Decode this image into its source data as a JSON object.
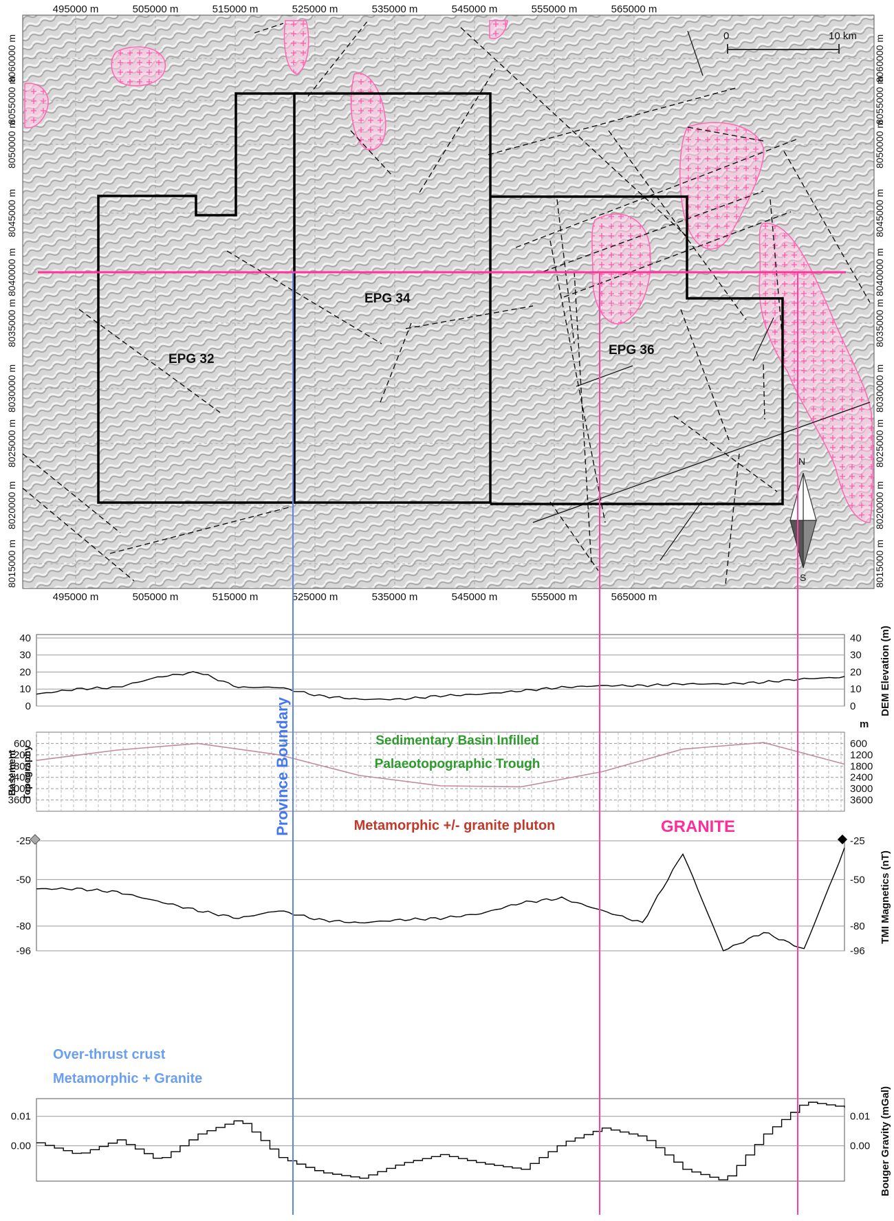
{
  "map": {
    "x_ticks": [
      "495000 m",
      "505000 m",
      "515000 m",
      "525000 m",
      "535000 m",
      "545000 m",
      "555000 m",
      "565000 m"
    ],
    "y_ticks": [
      "8060000 m",
      "8055000 m",
      "8050000 m",
      "8045000 m",
      "8040000 m",
      "8035000 m",
      "8030000 m",
      "8025000 m",
      "8020000 m",
      "8015000 m"
    ],
    "tenements": [
      "EPG 32",
      "EPG 34",
      "EPG 36"
    ],
    "scale_bar": {
      "start": "0",
      "end": "10 km"
    },
    "north_arrow": {
      "north": "N",
      "south": "S"
    },
    "colors": {
      "granite_outline": "#ff66b3",
      "granite_fill": "#ffc4e4",
      "profile_line": "#ff3399",
      "tenement": "#000000",
      "background": "#d8d8d8"
    }
  },
  "annotations": {
    "province_boundary": "Province Boundary",
    "sedimentary": [
      "Sedimentary Basin Infilled",
      "Palaeotopographic Trough"
    ],
    "metamorphic": "Metamorphic +/- granite pluton",
    "granite": "GRANITE",
    "overthrust": [
      "Over-thrust crust",
      "Metamorphic + Granite"
    ],
    "colors": {
      "province": "#4477ee",
      "sedimentary": "#2e9a2e",
      "metamorphic": "#c0392b",
      "granite": "#ff2d9b",
      "overthrust": "#6a9ef2"
    }
  },
  "chart_data": [
    {
      "type": "line",
      "ylabel": "DEM Elevation (m)",
      "yticks": [
        "0",
        "10",
        "20",
        "30",
        "40"
      ],
      "ylim": [
        0,
        42
      ],
      "x": [
        0,
        5,
        10,
        15,
        20,
        25,
        30,
        35,
        40,
        45,
        50,
        55,
        60,
        65,
        70,
        75,
        80,
        85,
        90,
        95,
        100
      ],
      "values": [
        7,
        10,
        11,
        17,
        20,
        11,
        11,
        6,
        4,
        4,
        6,
        7,
        9,
        11,
        12,
        12,
        13,
        13,
        14,
        16,
        17
      ]
    },
    {
      "type": "line",
      "title_left": [
        "Basement",
        "Topography"
      ],
      "ylabel": "m",
      "yticks": [
        "600",
        "1200",
        "1800",
        "2400",
        "3000",
        "3600"
      ],
      "ylim": [
        0,
        4200
      ],
      "x": [
        0,
        10,
        20,
        30,
        40,
        50,
        60,
        70,
        80,
        90,
        100
      ],
      "values": [
        1500,
        950,
        600,
        1200,
        2300,
        2850,
        2900,
        2100,
        900,
        550,
        1700
      ]
    },
    {
      "type": "line",
      "ylabel": "TMI Magnetics (nT)",
      "yticks": [
        "-25",
        "-50",
        "-80",
        "-96"
      ],
      "ylim": [
        -96,
        -25
      ],
      "x": [
        0,
        5,
        10,
        15,
        20,
        25,
        30,
        35,
        40,
        45,
        50,
        55,
        60,
        65,
        70,
        75,
        80,
        85,
        90,
        95,
        100
      ],
      "values": [
        -56,
        -56,
        -58,
        -64,
        -70,
        -75,
        -70,
        -76,
        -78,
        -76,
        -75,
        -72,
        -65,
        -62,
        -70,
        -78,
        -33,
        -96,
        -84,
        -95,
        -30
      ]
    },
    {
      "type": "line",
      "ylabel": "Bouger Gravity (mGal)",
      "yticks": [
        "0.01",
        "0.00"
      ],
      "ylim": [
        -0.012,
        0.016
      ],
      "x": [
        0,
        5,
        10,
        15,
        20,
        25,
        30,
        35,
        40,
        45,
        50,
        55,
        60,
        65,
        70,
        75,
        80,
        85,
        90,
        95,
        100
      ],
      "values": [
        0.001,
        -0.003,
        0.002,
        -0.005,
        0.004,
        0.009,
        -0.004,
        -0.009,
        -0.011,
        -0.006,
        -0.003,
        -0.006,
        -0.008,
        0.001,
        0.006,
        0.003,
        -0.008,
        -0.012,
        0.004,
        0.015,
        0.013
      ]
    }
  ]
}
